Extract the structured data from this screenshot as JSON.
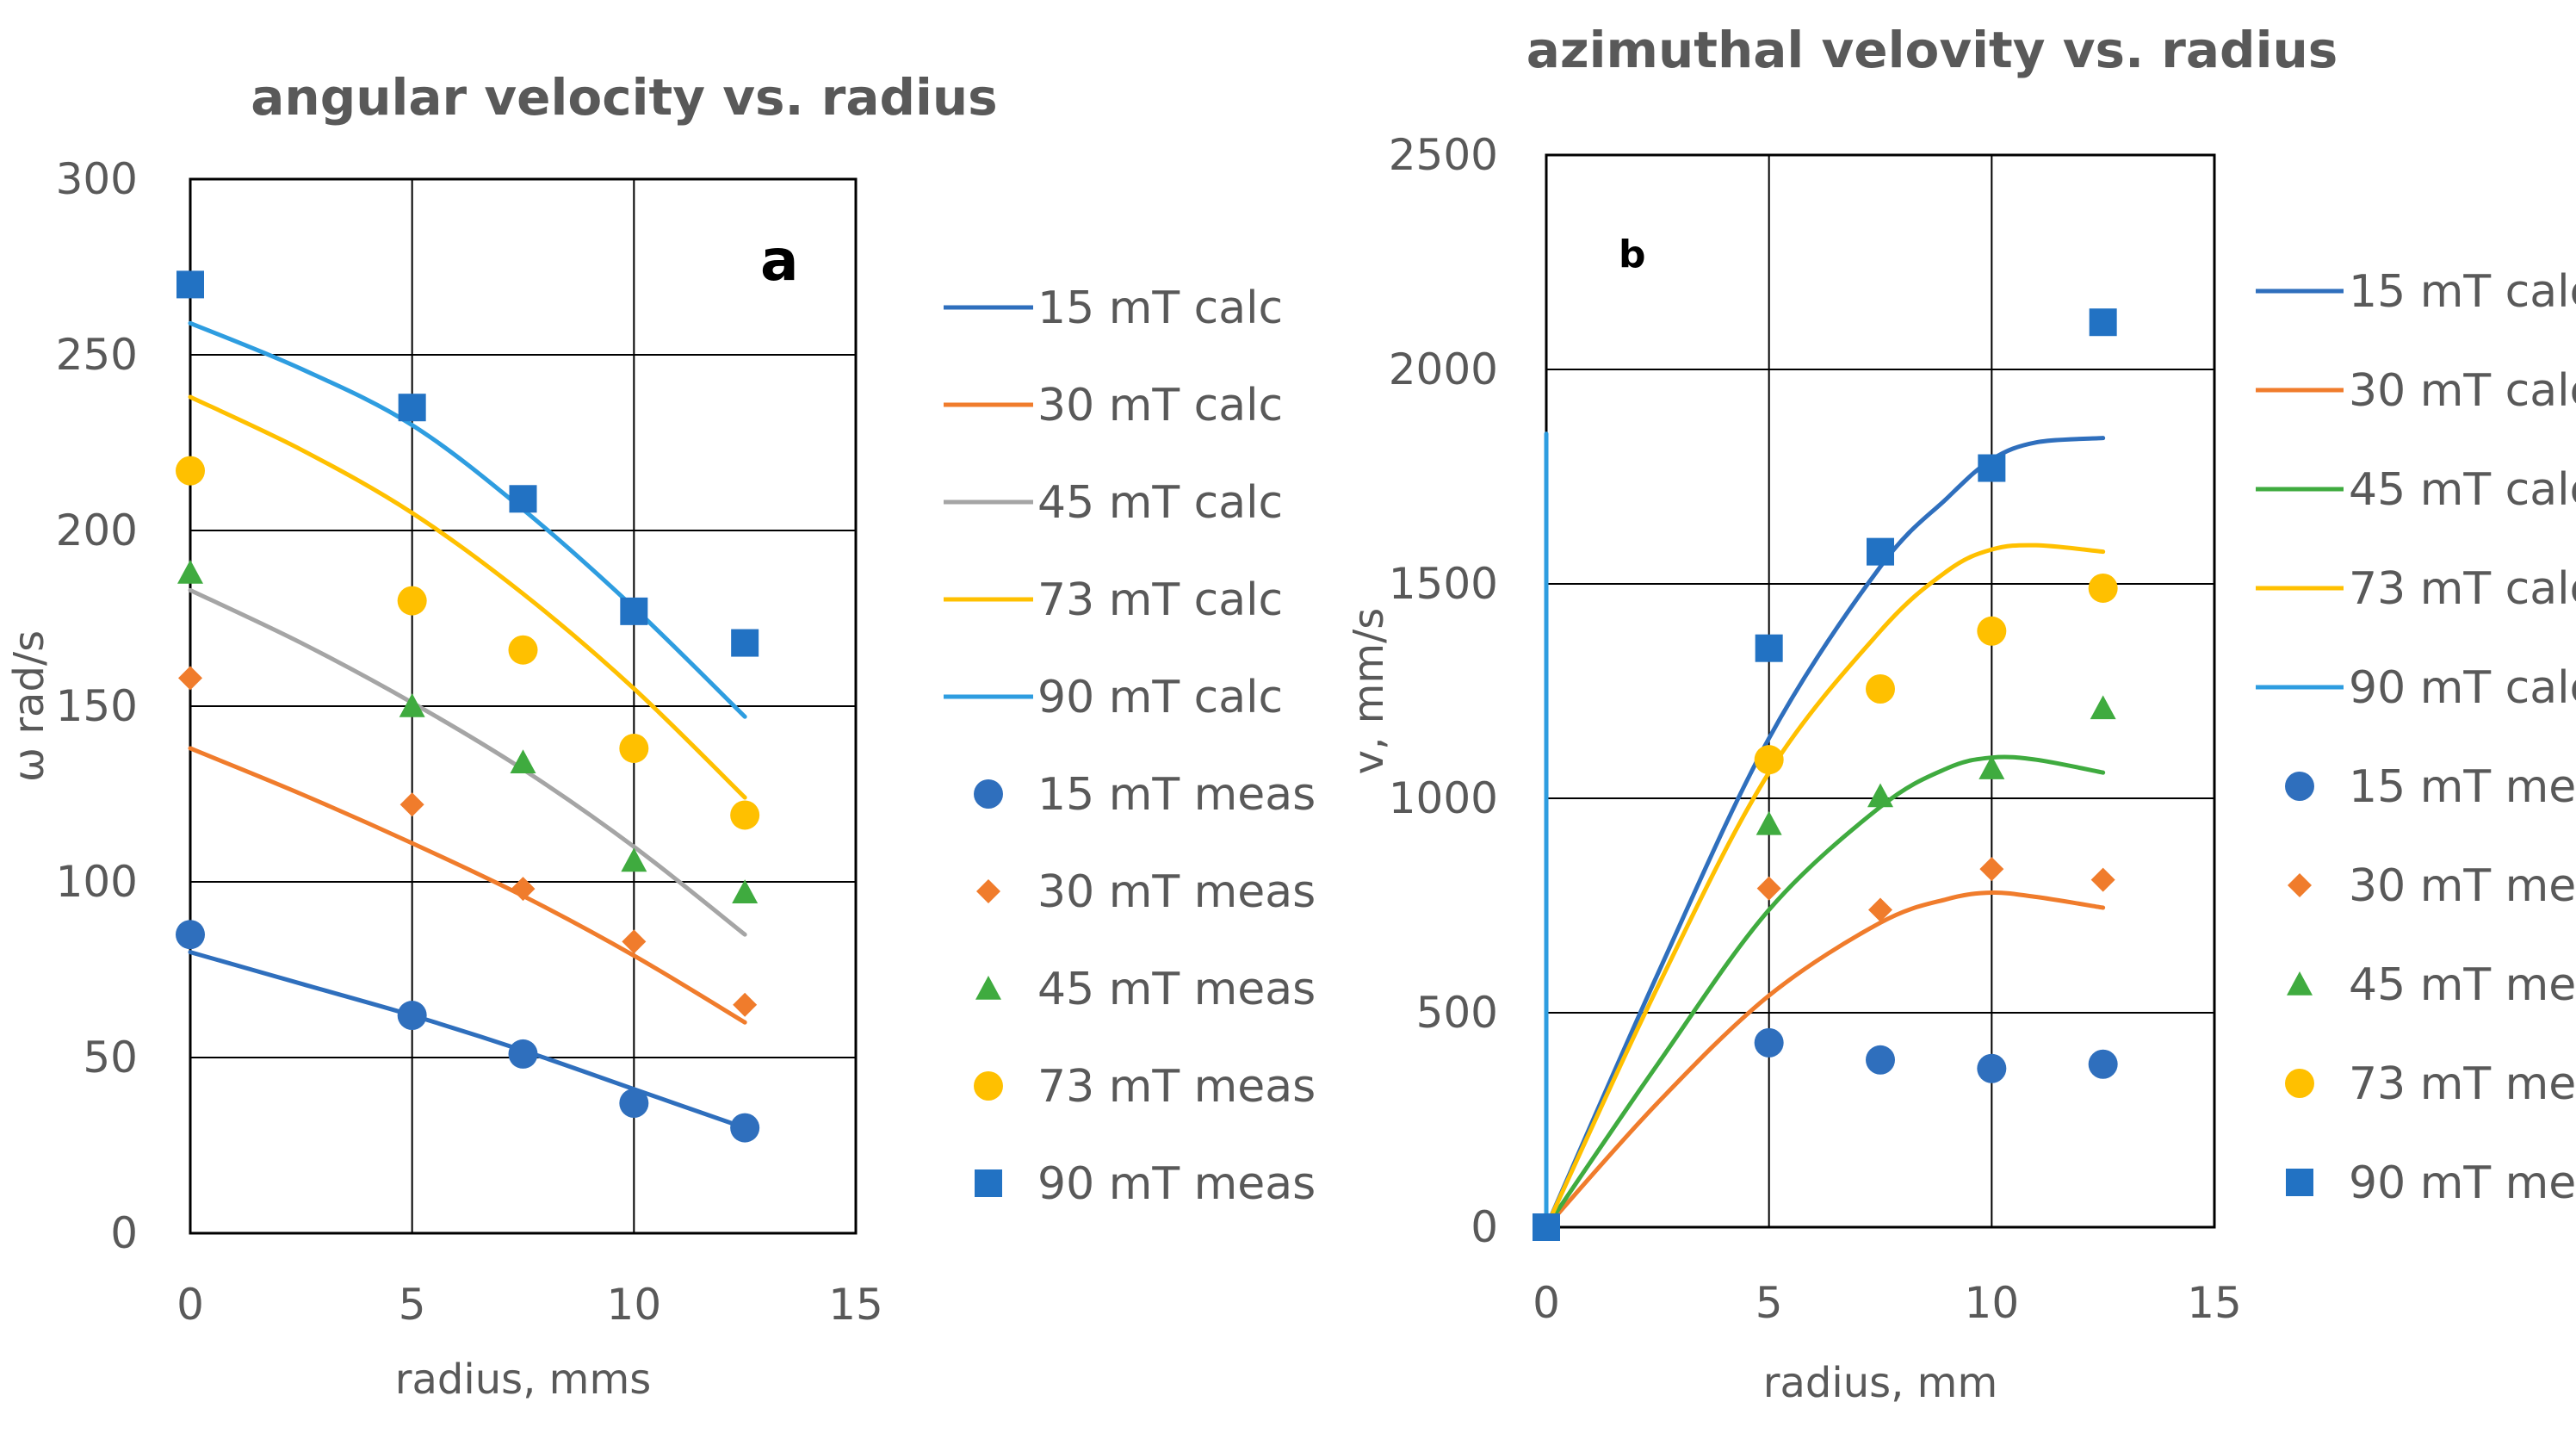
{
  "chart_data": [
    {
      "type": "line",
      "panel": "a",
      "title": "angular velocity vs. radius",
      "xlabel": "radius, mms",
      "ylabel": "ω rad/s",
      "xlim": [
        0,
        15
      ],
      "ylim": [
        0,
        300
      ],
      "xticks": [
        "0",
        "5",
        "10",
        "15"
      ],
      "yticks": [
        "0",
        "50",
        "100",
        "150",
        "200",
        "250",
        "300"
      ],
      "xtick_values": [
        0,
        5,
        10,
        15
      ],
      "ytick_values": [
        0,
        50,
        100,
        150,
        200,
        250,
        300
      ],
      "grid": true,
      "legend_position": "right",
      "series": [
        {
          "name": "15 mT calc",
          "kind": "line",
          "color": "#2f6fbd",
          "x": [
            0,
            2.5,
            5,
            7.5,
            10,
            12.5
          ],
          "y": [
            80,
            71,
            62,
            52,
            41,
            30
          ]
        },
        {
          "name": "30 mT calc",
          "kind": "line",
          "color": "#f07c2c",
          "x": [
            0,
            2.5,
            5,
            7.5,
            10,
            12.5
          ],
          "y": [
            138,
            125,
            111,
            96,
            79,
            60
          ]
        },
        {
          "name": "45 mT calc",
          "kind": "line",
          "color": "#a5a5a5",
          "x": [
            0,
            2.5,
            5,
            7.5,
            10,
            12.5
          ],
          "y": [
            183,
            168,
            151,
            132,
            110,
            85
          ]
        },
        {
          "name": "73 mT calc",
          "kind": "line",
          "color": "#ffc000",
          "x": [
            0,
            2.5,
            5,
            7.5,
            10,
            12.5
          ],
          "y": [
            238,
            223,
            205,
            182,
            155,
            124
          ]
        },
        {
          "name": "90 mT calc",
          "kind": "line",
          "color": "#2e9de0",
          "x": [
            0,
            2.5,
            5,
            7.5,
            10,
            12.5
          ],
          "y": [
            259,
            246,
            230,
            206,
            178,
            147
          ]
        },
        {
          "name": "15 mT meas",
          "kind": "scatter",
          "marker": "circle",
          "color": "#2f6fbd",
          "x": [
            0,
            5,
            7.5,
            10,
            12.5
          ],
          "y": [
            85,
            62,
            51,
            37,
            30
          ]
        },
        {
          "name": "30 mT meas",
          "kind": "scatter",
          "marker": "diamond",
          "color": "#f07c2c",
          "x": [
            0,
            5,
            7.5,
            10,
            12.5
          ],
          "y": [
            158,
            122,
            98,
            83,
            65
          ]
        },
        {
          "name": "45 mT meas",
          "kind": "scatter",
          "marker": "triangle",
          "color": "#3fab3f",
          "x": [
            0,
            5,
            7.5,
            10,
            12.5
          ],
          "y": [
            188,
            150,
            134,
            106,
            97
          ]
        },
        {
          "name": "73 mT meas",
          "kind": "scatter",
          "marker": "circle",
          "color": "#ffc000",
          "x": [
            0,
            5,
            7.5,
            10,
            12.5
          ],
          "y": [
            217,
            180,
            166,
            138,
            119
          ]
        },
        {
          "name": "90 mT meas",
          "kind": "scatter",
          "marker": "square",
          "color": "#2272c3",
          "x": [
            0,
            5,
            7.5,
            10,
            12.5
          ],
          "y": [
            270,
            235,
            209,
            177,
            168
          ]
        }
      ]
    },
    {
      "type": "line",
      "panel": "b",
      "title": "azimuthal velovity vs. radius",
      "xlabel": "radius, mm",
      "ylabel": "v, mm/s",
      "xlim": [
        0,
        15
      ],
      "ylim": [
        0,
        2500
      ],
      "xticks": [
        "0",
        "5",
        "10",
        "15"
      ],
      "yticks": [
        "0",
        "500",
        "1000",
        "1500",
        "2000",
        "2500"
      ],
      "xtick_values": [
        0,
        5,
        10,
        15
      ],
      "ytick_values": [
        0,
        500,
        1000,
        1500,
        2000,
        2500
      ],
      "grid": true,
      "legend_position": "right",
      "series": [
        {
          "name": "15 mT calc",
          "kind": "line",
          "color": "#2f6fbd",
          "x": [
            0,
            2.5,
            5,
            7.5,
            9,
            10,
            11,
            12.5
          ],
          "y": [
            0,
            590,
            1140,
            1540,
            1700,
            1790,
            1830,
            1840
          ]
        },
        {
          "name": "30 mT calc",
          "kind": "line",
          "color": "#f07c2c",
          "x": [
            0,
            2.5,
            5,
            7.5,
            9,
            10,
            11,
            12.5
          ],
          "y": [
            0,
            290,
            540,
            710,
            765,
            780,
            770,
            745
          ]
        },
        {
          "name": "45 mT calc",
          "kind": "line",
          "color": "#3fab3f",
          "x": [
            0,
            2.5,
            5,
            7.5,
            9,
            10,
            11,
            12.5
          ],
          "y": [
            0,
            380,
            740,
            980,
            1070,
            1095,
            1090,
            1060
          ]
        },
        {
          "name": "73 mT calc",
          "kind": "line",
          "color": "#ffc000",
          "x": [
            0,
            2.5,
            5,
            7.5,
            9,
            10,
            11,
            12.5
          ],
          "y": [
            0,
            560,
            1060,
            1390,
            1530,
            1580,
            1590,
            1575
          ]
        },
        {
          "name": "90 mT calc",
          "kind": "line",
          "color": "#2e9de0",
          "x": [
            0,
            0
          ],
          "y": [
            0,
            1850
          ]
        },
        {
          "name": "15 mT meas",
          "kind": "scatter",
          "marker": "circle",
          "color": "#2f6fbd",
          "x": [
            5,
            7.5,
            10,
            12.5
          ],
          "y": [
            430,
            390,
            370,
            380
          ]
        },
        {
          "name": "30 mT meas",
          "kind": "scatter",
          "marker": "diamond",
          "color": "#f07c2c",
          "x": [
            5,
            7.5,
            10,
            12.5
          ],
          "y": [
            790,
            740,
            835,
            810
          ]
        },
        {
          "name": "45 mT meas",
          "kind": "scatter",
          "marker": "triangle",
          "color": "#3fab3f",
          "x": [
            5,
            7.5,
            10,
            12.5
          ],
          "y": [
            940,
            1005,
            1070,
            1210
          ]
        },
        {
          "name": "73 mT meas",
          "kind": "scatter",
          "marker": "circle",
          "color": "#ffc000",
          "x": [
            5,
            7.5,
            10,
            12.5
          ],
          "y": [
            1090,
            1255,
            1390,
            1490
          ]
        },
        {
          "name": "90 mT meas",
          "kind": "scatter",
          "marker": "square",
          "color": "#2272c3",
          "x": [
            0,
            5,
            7.5,
            10,
            12.5
          ],
          "y": [
            0,
            1350,
            1575,
            1770,
            2110
          ]
        },
        {
          "name": "baseline point",
          "kind": "scatter",
          "marker": "square",
          "color": "#2272c3",
          "legend": false,
          "x": [
            0
          ],
          "y": [
            0
          ]
        }
      ]
    }
  ]
}
